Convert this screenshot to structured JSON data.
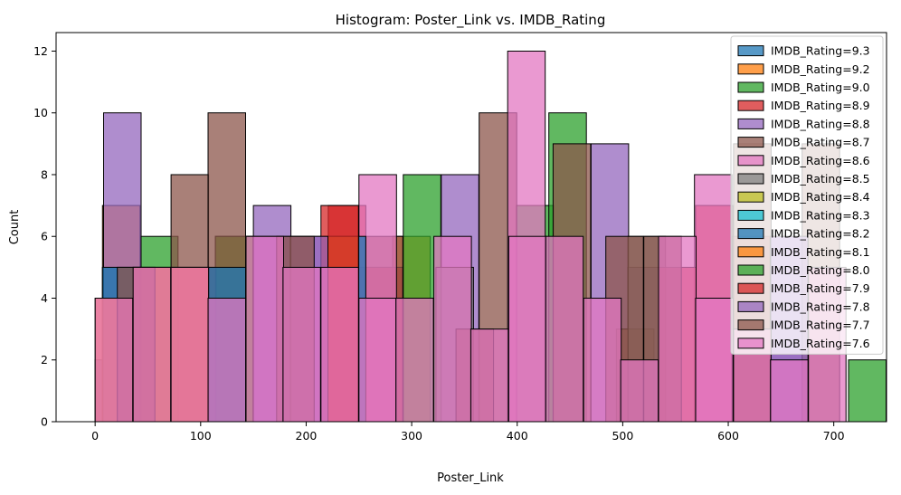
{
  "chart_data": {
    "type": "histogram",
    "title": "Histogram: Poster_Link vs. IMDB_Rating",
    "xlabel": "Poster_Link",
    "ylabel": "Count",
    "xlim": [
      -37,
      750
    ],
    "ylim": [
      0,
      12.6
    ],
    "x_ticks": [
      0,
      100,
      200,
      300,
      400,
      500,
      600,
      700
    ],
    "y_ticks": [
      0,
      2,
      4,
      6,
      8,
      10,
      12
    ],
    "bin_width": 35.6,
    "legend_position": "upper-right",
    "alpha": 0.75,
    "series": [
      {
        "name": "IMDB_Rating=9.3",
        "color": "#1f77b4",
        "bins": [
          [
            0,
            2
          ]
        ]
      },
      {
        "name": "IMDB_Rating=9.2",
        "color": "#ff7f0e",
        "bins": [
          [
            7,
            7
          ],
          [
            43,
            5
          ],
          [
            114,
            6
          ],
          [
            256,
            5
          ],
          [
            282,
            6
          ]
        ]
      },
      {
        "name": "IMDB_Rating=9.0",
        "color": "#2ca02c",
        "bins": [
          [
            7,
            5
          ],
          [
            43,
            6
          ],
          [
            114,
            6
          ],
          [
            292,
            8
          ],
          [
            399,
            7
          ],
          [
            430,
            10
          ],
          [
            714,
            2
          ]
        ]
      },
      {
        "name": "IMDB_Rating=8.9",
        "color": "#d62728",
        "bins": [
          [
            79,
            5
          ],
          [
            221,
            5
          ],
          [
            221,
            7
          ],
          [
            256,
            5
          ],
          [
            569,
            7
          ],
          [
            604,
            6
          ]
        ]
      },
      {
        "name": "IMDB_Rating=8.8",
        "color": "#9467bd",
        "bins": [
          [
            8,
            10
          ],
          [
            150,
            7
          ],
          [
            185,
            6
          ],
          [
            328,
            8
          ],
          [
            470,
            9
          ],
          [
            505,
            5
          ],
          [
            640,
            6
          ]
        ]
      },
      {
        "name": "IMDB_Rating=8.7",
        "color": "#8c564b",
        "bins": [
          [
            72,
            8
          ],
          [
            107,
            10
          ],
          [
            256,
            6
          ],
          [
            364,
            10
          ],
          [
            434,
            9
          ],
          [
            494,
            3
          ],
          [
            605,
            9
          ],
          [
            670,
            9
          ]
        ]
      },
      {
        "name": "IMDB_Rating=8.6",
        "color": "#e377c2",
        "bins": [
          [
            250,
            8
          ],
          [
            391,
            12
          ],
          [
            568,
            8
          ]
        ]
      },
      {
        "name": "IMDB_Rating=8.5",
        "color": "#7f7f7f",
        "bins": [
          [
            323,
            5
          ],
          [
            505,
            6
          ]
        ]
      },
      {
        "name": "IMDB_Rating=8.4",
        "color": "#bcbd22",
        "bins": []
      },
      {
        "name": "IMDB_Rating=8.3",
        "color": "#17becf",
        "bins": []
      },
      {
        "name": "IMDB_Rating=8.2",
        "color": "#1f77b4",
        "bins": [
          [
            7,
            5
          ],
          [
            107,
            5
          ],
          [
            221,
            6
          ]
        ]
      },
      {
        "name": "IMDB_Rating=8.1",
        "color": "#ff7f0e",
        "bins": [
          [
            0,
            4
          ],
          [
            36,
            5
          ],
          [
            72,
            5
          ],
          [
            214,
            6
          ]
        ]
      },
      {
        "name": "IMDB_Rating=8.0",
        "color": "#2ca02c",
        "bins": []
      },
      {
        "name": "IMDB_Rating=7.9",
        "color": "#d62728",
        "bins": [
          [
            214,
            7
          ],
          [
            534,
            5
          ]
        ]
      },
      {
        "name": "IMDB_Rating=7.8",
        "color": "#9467bd",
        "bins": [
          [
            150,
            6
          ],
          [
            185,
            6
          ],
          [
            640,
            6
          ]
        ]
      },
      {
        "name": "IMDB_Rating=7.7",
        "color": "#8c564b",
        "bins": [
          [
            21,
            5
          ],
          [
            172,
            6
          ],
          [
            342,
            3
          ],
          [
            484,
            6
          ],
          [
            520,
            6
          ]
        ]
      },
      {
        "name": "IMDB_Rating=7.6",
        "color": "#e377c2",
        "bins": [
          [
            0,
            4
          ],
          [
            36,
            5
          ],
          [
            72,
            5
          ],
          [
            107,
            4
          ],
          [
            143,
            6
          ],
          [
            178,
            5
          ],
          [
            214,
            5
          ],
          [
            250,
            4
          ],
          [
            285,
            4
          ],
          [
            321,
            6
          ],
          [
            356,
            3
          ],
          [
            392,
            6
          ],
          [
            427,
            6
          ],
          [
            463,
            4
          ],
          [
            498,
            2
          ],
          [
            534,
            6
          ],
          [
            569,
            4
          ],
          [
            605,
            3
          ],
          [
            640,
            2
          ],
          [
            676,
            5
          ]
        ]
      }
    ]
  }
}
